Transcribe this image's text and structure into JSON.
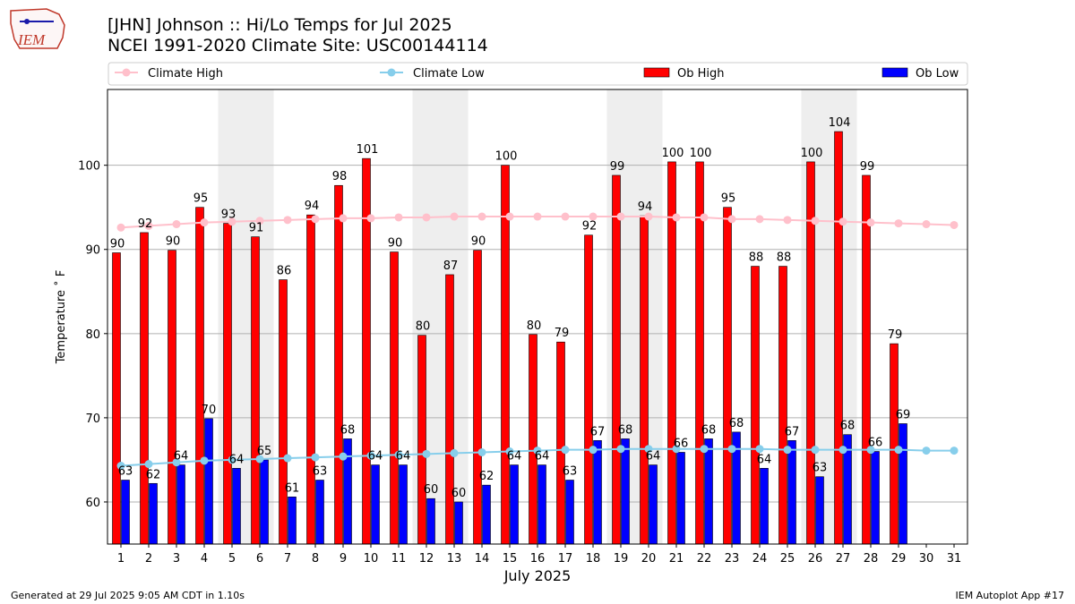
{
  "header": {
    "title_line1": "[JHN] Johnson :: Hi/Lo Temps for Jul 2025",
    "title_line2": "NCEI 1991-2020 Climate Site: USC00144114",
    "logo_text": "IEM"
  },
  "footer": {
    "left": "Generated at 29 Jul 2025 9:05 AM CDT in 1.10s",
    "right": "IEM Autoplot App #17"
  },
  "colors": {
    "ob_high": "#ff0000",
    "ob_low": "#0000ff",
    "climate_high": "#ffc0cb",
    "climate_low": "#87ceeb",
    "weekend_shade": "#eeeeee",
    "grid": "#b0b0b0"
  },
  "chart_data": {
    "type": "bar",
    "xlabel": "July 2025",
    "ylabel": "Temperature ˚ F",
    "ylim": [
      55,
      109
    ],
    "yticks": [
      60,
      70,
      80,
      90,
      100
    ],
    "grid": true,
    "legend_position": "top",
    "categories": [
      "1",
      "2",
      "3",
      "4",
      "5",
      "6",
      "7",
      "8",
      "9",
      "10",
      "11",
      "12",
      "13",
      "14",
      "15",
      "16",
      "17",
      "18",
      "19",
      "20",
      "21",
      "22",
      "23",
      "24",
      "25",
      "26",
      "27",
      "28",
      "29",
      "30",
      "31"
    ],
    "shaded_days": [
      5,
      6,
      12,
      13,
      19,
      20,
      26,
      27
    ],
    "legend": [
      "Climate High",
      "Climate Low",
      "Ob High",
      "Ob Low"
    ],
    "series": [
      {
        "name": "Ob High",
        "kind": "bar",
        "values": [
          89.6,
          92.0,
          89.9,
          95.0,
          93.1,
          91.5,
          86.4,
          94.1,
          97.6,
          100.8,
          89.7,
          79.8,
          87.0,
          89.9,
          100.0,
          79.9,
          79.0,
          91.7,
          98.8,
          94.0,
          100.4,
          100.4,
          95.0,
          88.0,
          88.0,
          100.4,
          104.0,
          98.8,
          78.8,
          null,
          null
        ],
        "labels": [
          "90",
          "92",
          "90",
          "95",
          "93",
          "91",
          "86",
          "94",
          "98",
          "101",
          "90",
          "80",
          "87",
          "90",
          "100",
          "80",
          "79",
          "92",
          "99",
          "94",
          "100",
          "100",
          "95",
          "88",
          "88",
          "100",
          "104",
          "99",
          "79",
          "",
          ""
        ]
      },
      {
        "name": "Ob Low",
        "kind": "bar",
        "values": [
          62.6,
          62.2,
          64.4,
          69.9,
          64.0,
          65.0,
          60.6,
          62.6,
          67.5,
          64.4,
          64.4,
          60.4,
          60.0,
          62.0,
          64.4,
          64.4,
          62.6,
          67.3,
          67.5,
          64.4,
          65.9,
          67.5,
          68.3,
          64.0,
          67.3,
          63.0,
          68.0,
          66.0,
          69.3,
          null,
          null
        ],
        "labels": [
          "63",
          "62",
          "64",
          "70",
          "64",
          "65",
          "61",
          "63",
          "68",
          "64",
          "64",
          "60",
          "60",
          "62",
          "64",
          "64",
          "63",
          "67",
          "68",
          "64",
          "66",
          "68",
          "68",
          "64",
          "67",
          "63",
          "68",
          "66",
          "69",
          "",
          ""
        ]
      },
      {
        "name": "Climate High",
        "kind": "line",
        "values": [
          92.6,
          92.8,
          93.0,
          93.2,
          93.3,
          93.4,
          93.5,
          93.6,
          93.7,
          93.7,
          93.8,
          93.8,
          93.9,
          93.9,
          93.9,
          93.9,
          93.9,
          93.9,
          93.9,
          93.9,
          93.8,
          93.8,
          93.6,
          93.6,
          93.5,
          93.4,
          93.3,
          93.2,
          93.1,
          93.0,
          92.9
        ]
      },
      {
        "name": "Climate Low",
        "kind": "line",
        "values": [
          64.3,
          64.5,
          64.7,
          64.9,
          65.0,
          65.1,
          65.2,
          65.3,
          65.4,
          65.5,
          65.6,
          65.7,
          65.8,
          65.9,
          66.0,
          66.1,
          66.2,
          66.2,
          66.3,
          66.3,
          66.3,
          66.3,
          66.3,
          66.3,
          66.2,
          66.2,
          66.2,
          66.2,
          66.2,
          66.1,
          66.1
        ]
      }
    ]
  }
}
